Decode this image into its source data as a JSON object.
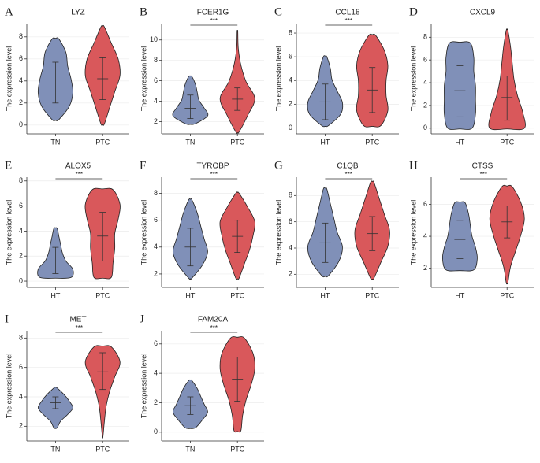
{
  "chart_data": [
    {
      "type": "violin",
      "panel": "A",
      "title": "LYZ",
      "y_label": "The expression level",
      "categories": [
        "TN",
        "PTC"
      ],
      "ylim": [
        -0.8,
        9.2
      ],
      "yticks": [
        0,
        2,
        4,
        6,
        8
      ],
      "grid": true,
      "groups": [
        {
          "color": "#8090b8",
          "min": 0.5,
          "max": 7.8,
          "mean": 3.8,
          "lower": 2.0,
          "upper": 5.7,
          "density": [
            0.2,
            0.8,
            1,
            0.9,
            0.7,
            0.6,
            0.2
          ]
        },
        {
          "color": "#d9585b",
          "min": 0.1,
          "max": 8.9,
          "mean": 4.2,
          "lower": 2.3,
          "upper": 6.1,
          "density": [
            0.1,
            0.4,
            0.7,
            1,
            0.9,
            0.5,
            0.1
          ]
        }
      ]
    },
    {
      "type": "violin",
      "panel": "B",
      "title": "FCER1G",
      "y_label": "The expression level",
      "categories": [
        "TN",
        "PTC"
      ],
      "ylim": [
        0.8,
        11.6
      ],
      "yticks": [
        2,
        4,
        6,
        8,
        10
      ],
      "grid": true,
      "significance": "***",
      "groups": [
        {
          "color": "#8090b8",
          "min": 1.8,
          "max": 6.4,
          "mean": 3.3,
          "lower": 2.3,
          "upper": 4.6,
          "density": [
            0.3,
            1,
            0.8,
            0.5,
            0.4,
            0.3,
            0.1
          ]
        },
        {
          "color": "#d9585b",
          "min": 1.0,
          "max": 10.8,
          "mean": 4.2,
          "lower": 3.1,
          "upper": 5.3,
          "density": [
            0.1,
            0.6,
            1,
            0.5,
            0.2,
            0.05,
            0.02
          ]
        }
      ]
    },
    {
      "type": "violin",
      "panel": "C",
      "title": "CCL18",
      "y_label": "The expression level",
      "categories": [
        "HT",
        "PTC"
      ],
      "ylim": [
        -0.5,
        8.8
      ],
      "yticks": [
        0,
        2,
        4,
        6,
        8
      ],
      "grid": true,
      "significance": "***",
      "groups": [
        {
          "color": "#8090b8",
          "min": 0.2,
          "max": 6.0,
          "mean": 2.2,
          "lower": 0.7,
          "upper": 3.7,
          "density": [
            0.2,
            0.9,
            1,
            0.7,
            0.4,
            0.3,
            0.1
          ]
        },
        {
          "color": "#d9585b",
          "min": 0.2,
          "max": 7.8,
          "mean": 3.2,
          "lower": 1.3,
          "upper": 5.1,
          "density": [
            0.5,
            0.9,
            0.8,
            0.8,
            0.9,
            0.7,
            0.2
          ]
        }
      ]
    },
    {
      "type": "violin",
      "panel": "D",
      "title": "CXCL9",
      "y_label": "The expression level",
      "categories": [
        "HT",
        "PTC"
      ],
      "ylim": [
        -0.5,
        9.2
      ],
      "yticks": [
        0,
        2,
        4,
        6,
        8
      ],
      "grid": true,
      "groups": [
        {
          "color": "#8090b8",
          "min": 0.0,
          "max": 7.5,
          "mean": 3.3,
          "lower": 1.0,
          "upper": 5.5,
          "density": [
            0.7,
            0.9,
            0.9,
            0.9,
            0.8,
            0.8,
            0.6
          ]
        },
        {
          "color": "#d9585b",
          "min": 0.0,
          "max": 8.6,
          "mean": 2.7,
          "lower": 0.7,
          "upper": 4.6,
          "density": [
            1,
            0.9,
            0.6,
            0.4,
            0.3,
            0.2,
            0.05
          ]
        }
      ]
    },
    {
      "type": "violin",
      "panel": "E",
      "title": "ALOX5",
      "y_label": "The expression level",
      "categories": [
        "HT",
        "PTC"
      ],
      "ylim": [
        -0.5,
        8.3
      ],
      "yticks": [
        0,
        2,
        4,
        6,
        8
      ],
      "grid": true,
      "significance": "***",
      "groups": [
        {
          "color": "#8090b8",
          "min": 0.3,
          "max": 4.2,
          "mean": 1.6,
          "lower": 0.6,
          "upper": 2.7,
          "density": [
            0.9,
            1,
            0.6,
            0.4,
            0.3,
            0.2,
            0.1
          ]
        },
        {
          "color": "#d9585b",
          "min": 0.3,
          "max": 7.3,
          "mean": 3.6,
          "lower": 1.6,
          "upper": 5.5,
          "density": [
            0.5,
            0.6,
            0.7,
            0.7,
            0.9,
            1,
            0.6
          ]
        }
      ]
    },
    {
      "type": "violin",
      "panel": "F",
      "title": "TYROBP",
      "y_label": "The expression level",
      "categories": [
        "HT",
        "PTC"
      ],
      "ylim": [
        1.0,
        9.2
      ],
      "yticks": [
        2,
        4,
        6,
        8
      ],
      "grid": true,
      "significance": "***",
      "groups": [
        {
          "color": "#8090b8",
          "min": 1.7,
          "max": 7.5,
          "mean": 4.0,
          "lower": 2.6,
          "upper": 5.4,
          "density": [
            0.1,
            0.7,
            1,
            0.8,
            0.6,
            0.4,
            0.1
          ]
        },
        {
          "color": "#d9585b",
          "min": 1.7,
          "max": 8.0,
          "mean": 4.8,
          "lower": 3.6,
          "upper": 6.0,
          "density": [
            0.1,
            0.4,
            0.7,
            0.9,
            1,
            0.6,
            0.1
          ]
        }
      ]
    },
    {
      "type": "violin",
      "panel": "G",
      "title": "C1QB",
      "y_label": "The expression level",
      "categories": [
        "HT",
        "PTC"
      ],
      "ylim": [
        1.0,
        9.4
      ],
      "yticks": [
        2,
        4,
        6,
        8
      ],
      "grid": true,
      "significance": "***",
      "groups": [
        {
          "color": "#8090b8",
          "min": 1.9,
          "max": 8.5,
          "mean": 4.4,
          "lower": 2.9,
          "upper": 5.9,
          "density": [
            0.2,
            0.8,
            1,
            0.7,
            0.5,
            0.3,
            0.1
          ]
        },
        {
          "color": "#d9585b",
          "min": 1.7,
          "max": 9.0,
          "mean": 5.1,
          "lower": 3.8,
          "upper": 6.4,
          "density": [
            0.1,
            0.5,
            0.9,
            1,
            0.7,
            0.4,
            0.1
          ]
        }
      ]
    },
    {
      "type": "violin",
      "panel": "H",
      "title": "CTSS",
      "y_label": "The expression level",
      "categories": [
        "HT",
        "PTC"
      ],
      "ylim": [
        0.8,
        7.7
      ],
      "yticks": [
        2,
        4,
        6
      ],
      "grid": true,
      "significance": "***",
      "groups": [
        {
          "color": "#8090b8",
          "min": 1.9,
          "max": 6.1,
          "mean": 3.8,
          "lower": 2.6,
          "upper": 5.0,
          "density": [
            0.8,
            1,
            0.9,
            0.7,
            0.6,
            0.5,
            0.3
          ]
        },
        {
          "color": "#d9585b",
          "min": 1.1,
          "max": 7.1,
          "mean": 4.9,
          "lower": 3.9,
          "upper": 5.9,
          "density": [
            0.05,
            0.2,
            0.5,
            0.8,
            1,
            0.8,
            0.3
          ]
        }
      ]
    },
    {
      "type": "violin",
      "panel": "I",
      "title": "MET",
      "y_label": "The expression level",
      "categories": [
        "TN",
        "PTC"
      ],
      "ylim": [
        1.0,
        8.5
      ],
      "yticks": [
        2,
        4,
        6,
        8
      ],
      "grid": true,
      "significance": "***",
      "groups": [
        {
          "color": "#8090b8",
          "min": 1.9,
          "max": 4.6,
          "mean": 3.6,
          "lower": 3.2,
          "upper": 4.0,
          "density": [
            0.1,
            0.3,
            0.7,
            1,
            0.8,
            0.5,
            0.1
          ]
        },
        {
          "color": "#d9585b",
          "min": 1.3,
          "max": 7.4,
          "mean": 5.7,
          "lower": 4.5,
          "upper": 7.0,
          "density": [
            0.02,
            0.1,
            0.2,
            0.4,
            0.7,
            1,
            0.5
          ]
        }
      ]
    },
    {
      "type": "violin",
      "panel": "J",
      "title": "FAM20A",
      "y_label": "The expression level",
      "categories": [
        "TN",
        "PTC"
      ],
      "ylim": [
        -0.6,
        6.9
      ],
      "yticks": [
        0,
        2,
        4,
        6
      ],
      "grid": true,
      "significance": "***",
      "groups": [
        {
          "color": "#8090b8",
          "min": 0.3,
          "max": 3.5,
          "mean": 1.8,
          "lower": 1.2,
          "upper": 2.4,
          "density": [
            0.3,
            0.7,
            1,
            0.8,
            0.6,
            0.4,
            0.1
          ]
        },
        {
          "color": "#d9585b",
          "min": 0.1,
          "max": 6.4,
          "mean": 3.6,
          "lower": 2.1,
          "upper": 5.1,
          "density": [
            0.2,
            0.3,
            0.5,
            0.8,
            1,
            0.9,
            0.4
          ]
        }
      ]
    }
  ]
}
